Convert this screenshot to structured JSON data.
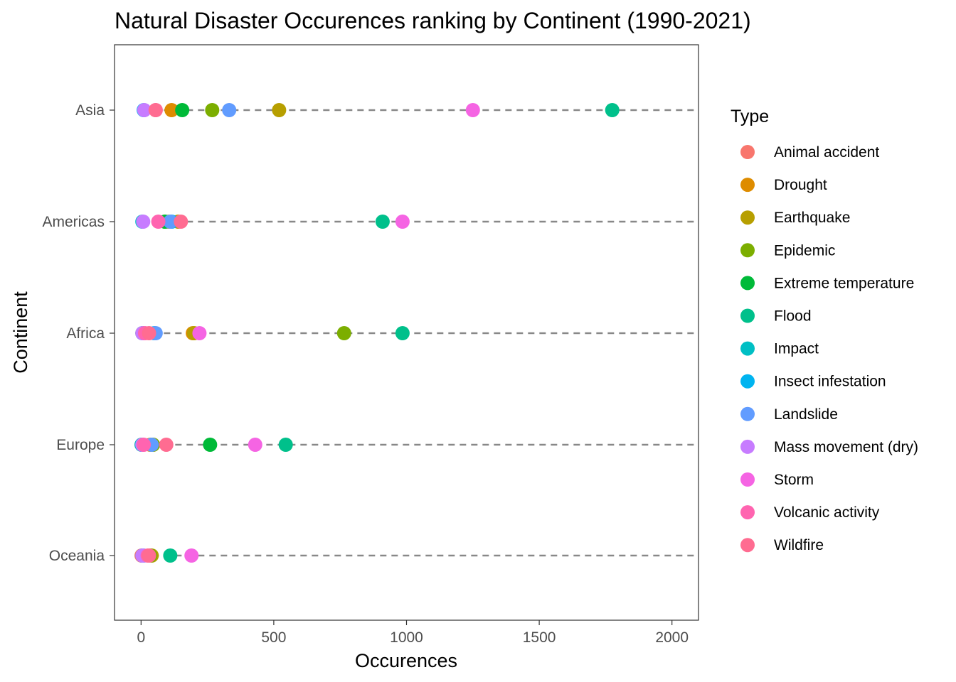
{
  "chart_data": {
    "type": "scatter",
    "title": "Natural Disaster Occurences ranking by Continent (1990-2021)",
    "xlabel": "Occurences",
    "ylabel": "Continent",
    "xlim": [
      -100,
      2100
    ],
    "x_ticks": [
      "0",
      "500",
      "1000",
      "1500",
      "2000"
    ],
    "categories": [
      "Asia",
      "Americas",
      "Africa",
      "Europe",
      "Oceania"
    ],
    "grid": false,
    "category_guides": "dashed",
    "legend": {
      "title": "Type",
      "position": "right",
      "items": [
        {
          "label": "Animal accident",
          "color": "#F8766D"
        },
        {
          "label": "Drought",
          "color": "#DE8C00"
        },
        {
          "label": "Earthquake",
          "color": "#B79F00"
        },
        {
          "label": "Epidemic",
          "color": "#7CAE00"
        },
        {
          "label": "Extreme temperature",
          "color": "#00BA38"
        },
        {
          "label": "Flood",
          "color": "#00C08B"
        },
        {
          "label": "Impact",
          "color": "#00BFC4"
        },
        {
          "label": "Insect infestation",
          "color": "#00B4F0"
        },
        {
          "label": "Landslide",
          "color": "#619CFF"
        },
        {
          "label": "Mass movement (dry)",
          "color": "#C77CFF"
        },
        {
          "label": "Storm",
          "color": "#F564E3"
        },
        {
          "label": "Volcanic activity",
          "color": "#FF64B0"
        },
        {
          "label": "Wildfire",
          "color": "#FF6C91"
        }
      ]
    },
    "series": [
      {
        "name": "Animal accident",
        "values": [
          null,
          null,
          null,
          2,
          2
        ]
      },
      {
        "name": "Drought",
        "values": [
          115,
          105,
          195,
          35,
          35
        ]
      },
      {
        "name": "Earthquake",
        "values": [
          520,
          140,
          200,
          45,
          40
        ]
      },
      {
        "name": "Epidemic",
        "values": [
          268,
          90,
          765,
          45,
          35
        ]
      },
      {
        "name": "Extreme temperature",
        "values": [
          155,
          90,
          5,
          260,
          5
        ]
      },
      {
        "name": "Flood",
        "values": [
          1775,
          910,
          985,
          545,
          110
        ]
      },
      {
        "name": "Impact",
        "values": [
          null,
          5,
          null,
          2,
          null
        ]
      },
      {
        "name": "Insect infestation",
        "values": [
          10,
          115,
          50,
          5,
          null
        ]
      },
      {
        "name": "Landslide",
        "values": [
          332,
          110,
          55,
          40,
          10
        ]
      },
      {
        "name": "Mass movement (dry)",
        "values": [
          12,
          8,
          5,
          5,
          5
        ]
      },
      {
        "name": "Storm",
        "values": [
          1250,
          985,
          220,
          430,
          190
        ]
      },
      {
        "name": "Volcanic activity",
        "values": [
          55,
          65,
          15,
          10,
          25
        ]
      },
      {
        "name": "Wildfire",
        "values": [
          55,
          150,
          30,
          95,
          30
        ]
      }
    ]
  }
}
